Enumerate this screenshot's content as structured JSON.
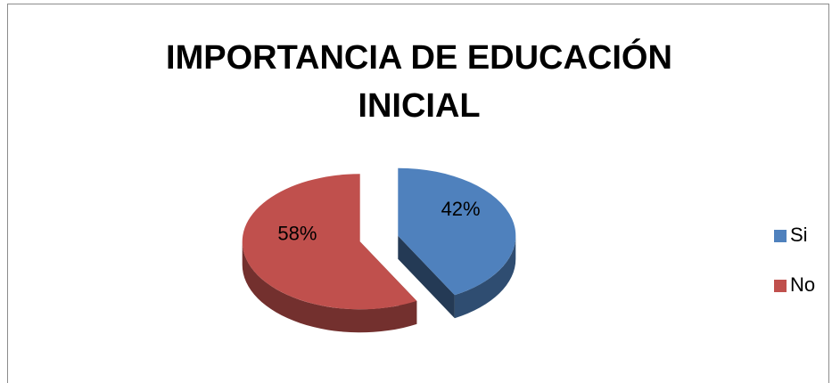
{
  "chart_data": {
    "type": "pie",
    "title": "IMPORTANCIA DE EDUCACIÓN INICIAL",
    "categories": [
      "Si",
      "No"
    ],
    "values": [
      42,
      58
    ],
    "value_labels": [
      "42%",
      "58%"
    ],
    "colors": [
      "#4f81bd",
      "#c0504d"
    ],
    "legend": "right"
  }
}
